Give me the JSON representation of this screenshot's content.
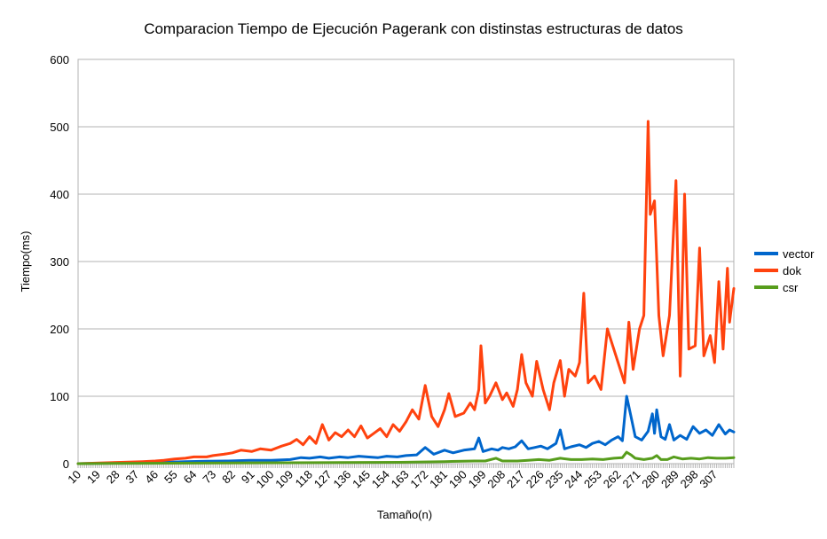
{
  "chart_data": {
    "type": "line",
    "title": "Comparacion Tiempo de Ejecución Pagerank con distinstas estructuras de datos",
    "xlabel": "Tamaño(n)",
    "ylabel": "Tiempo(ms)",
    "ylim": [
      0,
      600
    ],
    "yticks": [
      0,
      100,
      200,
      300,
      400,
      500,
      600
    ],
    "xlim": [
      10,
      316
    ],
    "xticks": [
      10,
      19,
      28,
      37,
      46,
      55,
      64,
      73,
      82,
      91,
      100,
      109,
      118,
      127,
      136,
      145,
      154,
      163,
      172,
      181,
      190,
      199,
      208,
      217,
      226,
      235,
      244,
      253,
      262,
      271,
      280,
      289,
      298,
      307
    ],
    "grid": true,
    "legend_position": "right",
    "series": [
      {
        "name": "vector",
        "color": "#0066cc",
        "points": [
          [
            10,
            0
          ],
          [
            20,
            0.5
          ],
          [
            30,
            1
          ],
          [
            40,
            1.5
          ],
          [
            50,
            2
          ],
          [
            60,
            3
          ],
          [
            70,
            3.5
          ],
          [
            80,
            4
          ],
          [
            90,
            5
          ],
          [
            100,
            5
          ],
          [
            109,
            6
          ],
          [
            114,
            9
          ],
          [
            118,
            8
          ],
          [
            123,
            10
          ],
          [
            127,
            8
          ],
          [
            132,
            10
          ],
          [
            136,
            9
          ],
          [
            141,
            11
          ],
          [
            145,
            10
          ],
          [
            150,
            9
          ],
          [
            154,
            11
          ],
          [
            159,
            10
          ],
          [
            163,
            12
          ],
          [
            168,
            13
          ],
          [
            172,
            24
          ],
          [
            176,
            14
          ],
          [
            181,
            20
          ],
          [
            185,
            16
          ],
          [
            190,
            20
          ],
          [
            195,
            22
          ],
          [
            197,
            38
          ],
          [
            199,
            18
          ],
          [
            203,
            22
          ],
          [
            206,
            20
          ],
          [
            208,
            24
          ],
          [
            211,
            22
          ],
          [
            214,
            25
          ],
          [
            217,
            34
          ],
          [
            220,
            22
          ],
          [
            223,
            24
          ],
          [
            226,
            26
          ],
          [
            229,
            22
          ],
          [
            233,
            30
          ],
          [
            235,
            50
          ],
          [
            237,
            22
          ],
          [
            240,
            25
          ],
          [
            244,
            28
          ],
          [
            247,
            24
          ],
          [
            250,
            30
          ],
          [
            253,
            33
          ],
          [
            256,
            28
          ],
          [
            259,
            35
          ],
          [
            262,
            40
          ],
          [
            264,
            34
          ],
          [
            266,
            100
          ],
          [
            268,
            70
          ],
          [
            270,
            40
          ],
          [
            273,
            35
          ],
          [
            276,
            48
          ],
          [
            278,
            74
          ],
          [
            279,
            45
          ],
          [
            280,
            80
          ],
          [
            282,
            40
          ],
          [
            284,
            36
          ],
          [
            286,
            58
          ],
          [
            288,
            35
          ],
          [
            291,
            42
          ],
          [
            294,
            36
          ],
          [
            297,
            55
          ],
          [
            300,
            45
          ],
          [
            303,
            50
          ],
          [
            306,
            42
          ],
          [
            309,
            58
          ],
          [
            312,
            44
          ],
          [
            314,
            50
          ],
          [
            316,
            47
          ]
        ]
      },
      {
        "name": "dok",
        "color": "#ff420e",
        "points": [
          [
            10,
            0
          ],
          [
            20,
            1
          ],
          [
            30,
            2
          ],
          [
            40,
            3
          ],
          [
            46,
            4
          ],
          [
            50,
            5
          ],
          [
            55,
            7
          ],
          [
            60,
            8
          ],
          [
            64,
            10
          ],
          [
            70,
            10
          ],
          [
            73,
            12
          ],
          [
            78,
            14
          ],
          [
            82,
            16
          ],
          [
            86,
            20
          ],
          [
            91,
            18
          ],
          [
            95,
            22
          ],
          [
            100,
            20
          ],
          [
            105,
            26
          ],
          [
            109,
            30
          ],
          [
            112,
            36
          ],
          [
            115,
            28
          ],
          [
            118,
            40
          ],
          [
            121,
            30
          ],
          [
            124,
            58
          ],
          [
            127,
            35
          ],
          [
            130,
            46
          ],
          [
            133,
            40
          ],
          [
            136,
            50
          ],
          [
            139,
            40
          ],
          [
            142,
            56
          ],
          [
            145,
            38
          ],
          [
            148,
            45
          ],
          [
            151,
            52
          ],
          [
            154,
            40
          ],
          [
            157,
            58
          ],
          [
            160,
            48
          ],
          [
            163,
            62
          ],
          [
            166,
            80
          ],
          [
            169,
            66
          ],
          [
            172,
            116
          ],
          [
            175,
            70
          ],
          [
            178,
            55
          ],
          [
            181,
            80
          ],
          [
            183,
            104
          ],
          [
            186,
            70
          ],
          [
            190,
            75
          ],
          [
            193,
            90
          ],
          [
            195,
            80
          ],
          [
            197,
            110
          ],
          [
            198,
            175
          ],
          [
            200,
            90
          ],
          [
            202,
            100
          ],
          [
            205,
            120
          ],
          [
            208,
            95
          ],
          [
            210,
            105
          ],
          [
            213,
            85
          ],
          [
            215,
            110
          ],
          [
            217,
            162
          ],
          [
            219,
            120
          ],
          [
            222,
            100
          ],
          [
            224,
            152
          ],
          [
            227,
            110
          ],
          [
            230,
            80
          ],
          [
            232,
            120
          ],
          [
            235,
            153
          ],
          [
            237,
            100
          ],
          [
            239,
            140
          ],
          [
            242,
            130
          ],
          [
            244,
            150
          ],
          [
            246,
            253
          ],
          [
            248,
            120
          ],
          [
            251,
            130
          ],
          [
            254,
            110
          ],
          [
            257,
            200
          ],
          [
            259,
            180
          ],
          [
            262,
            150
          ],
          [
            265,
            120
          ],
          [
            267,
            210
          ],
          [
            269,
            140
          ],
          [
            272,
            200
          ],
          [
            274,
            220
          ],
          [
            276,
            508
          ],
          [
            277,
            370
          ],
          [
            279,
            390
          ],
          [
            281,
            220
          ],
          [
            283,
            160
          ],
          [
            286,
            220
          ],
          [
            289,
            420
          ],
          [
            291,
            130
          ],
          [
            293,
            400
          ],
          [
            295,
            170
          ],
          [
            298,
            175
          ],
          [
            300,
            320
          ],
          [
            302,
            160
          ],
          [
            305,
            190
          ],
          [
            307,
            150
          ],
          [
            309,
            270
          ],
          [
            311,
            170
          ],
          [
            313,
            290
          ],
          [
            314,
            210
          ],
          [
            316,
            260
          ]
        ]
      },
      {
        "name": "csr",
        "color": "#579d1c",
        "points": [
          [
            10,
            0
          ],
          [
            40,
            0.5
          ],
          [
            80,
            1
          ],
          [
            120,
            1.5
          ],
          [
            160,
            2
          ],
          [
            181,
            3
          ],
          [
            195,
            4
          ],
          [
            200,
            4
          ],
          [
            205,
            8
          ],
          [
            208,
            4
          ],
          [
            215,
            4
          ],
          [
            220,
            5
          ],
          [
            225,
            6
          ],
          [
            230,
            5
          ],
          [
            235,
            8
          ],
          [
            240,
            6
          ],
          [
            245,
            6
          ],
          [
            250,
            7
          ],
          [
            255,
            6
          ],
          [
            260,
            8
          ],
          [
            264,
            9
          ],
          [
            266,
            17
          ],
          [
            268,
            13
          ],
          [
            270,
            8
          ],
          [
            274,
            6
          ],
          [
            278,
            8
          ],
          [
            280,
            12
          ],
          [
            282,
            6
          ],
          [
            285,
            6
          ],
          [
            288,
            10
          ],
          [
            292,
            7
          ],
          [
            296,
            8
          ],
          [
            300,
            7
          ],
          [
            304,
            9
          ],
          [
            308,
            8
          ],
          [
            312,
            8
          ],
          [
            316,
            9
          ]
        ]
      }
    ]
  }
}
